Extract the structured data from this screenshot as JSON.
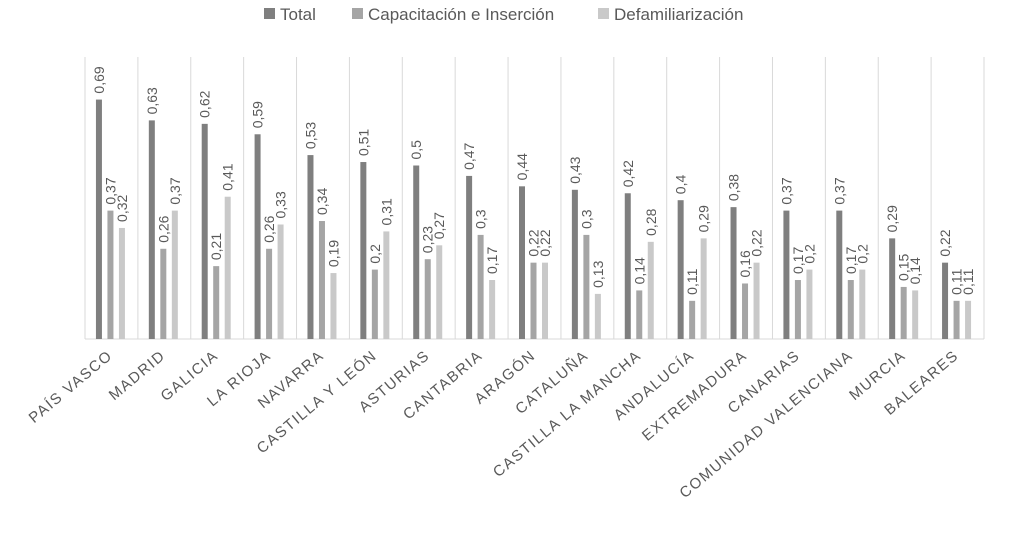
{
  "chart_data": {
    "type": "bar",
    "categories": [
      "PAÍS VASCO",
      "MADRID",
      "GALICIA",
      "LA RIOJA",
      "NAVARRA",
      "CASTILLA Y LEÓN",
      "ASTURIAS",
      "CANTABRIA",
      "ARAGÓN",
      "CATALUÑA",
      "CASTILLA LA MANCHA",
      "ANDALUCÍA",
      "EXTREMADURA",
      "CANARIAS",
      "COMUNIDAD VALENCIANA",
      "MURCIA",
      "BALEARES"
    ],
    "series": [
      {
        "name": "Total",
        "color": "#7f7f7f",
        "values": [
          0.69,
          0.63,
          0.62,
          0.59,
          0.53,
          0.51,
          0.5,
          0.47,
          0.44,
          0.43,
          0.42,
          0.4,
          0.38,
          0.37,
          0.37,
          0.29,
          0.22
        ]
      },
      {
        "name": "Capacitación e Inserción",
        "color": "#a5a5a5",
        "values": [
          0.37,
          0.26,
          0.21,
          0.26,
          0.34,
          0.2,
          0.23,
          0.3,
          0.22,
          0.3,
          0.14,
          0.11,
          0.16,
          0.17,
          0.17,
          0.15,
          0.11
        ]
      },
      {
        "name": "Defamiliarización",
        "color": "#c9c9c9",
        "values": [
          0.32,
          0.37,
          0.41,
          0.33,
          0.19,
          0.31,
          0.27,
          0.17,
          0.22,
          0.13,
          0.28,
          0.29,
          0.22,
          0.2,
          0.2,
          0.14,
          0.11
        ]
      }
    ],
    "title": "",
    "xlabel": "",
    "ylabel": "",
    "ylim": [
      0,
      0.8
    ],
    "grid": true,
    "legend": "top-center",
    "decimal_separator": ","
  }
}
